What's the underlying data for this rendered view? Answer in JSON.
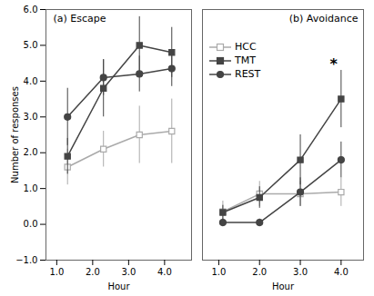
{
  "chart_data": [
    {
      "type": "line",
      "title": "(a) Escape",
      "xlabel": "Hour",
      "ylabel": "Number of responses",
      "x": [
        1.3,
        2.3,
        3.3,
        4.2
      ],
      "series": [
        {
          "name": "HCC",
          "color": "#aaaaaa",
          "marker": "open_square",
          "values": [
            1.6,
            2.1,
            2.5,
            2.6
          ],
          "yerr": [
            0.5,
            0.5,
            0.8,
            0.9
          ]
        },
        {
          "name": "TMT",
          "color": "#444444",
          "marker": "square",
          "values": [
            1.9,
            3.8,
            5.0,
            4.8
          ],
          "yerr": [
            0.5,
            0.8,
            0.8,
            0.7
          ]
        },
        {
          "name": "REST",
          "color": "#444444",
          "marker": "circle",
          "values": [
            3.0,
            4.1,
            4.2,
            4.35
          ],
          "yerr": [
            0.8,
            0.5,
            0.5,
            0.5
          ]
        }
      ],
      "xlim": [
        0.7,
        4.75
      ],
      "xticks": [
        1,
        2,
        3,
        4
      ],
      "ylim": [
        -1,
        6
      ],
      "yticks": [
        -1,
        0,
        1,
        2,
        3,
        4,
        5,
        6
      ]
    },
    {
      "type": "line",
      "title": "(b) Avoidance",
      "xlabel": "Hour",
      "x": [
        1.1,
        2.0,
        3.0,
        4.0
      ],
      "series": [
        {
          "name": "HCC",
          "color": "#aaaaaa",
          "marker": "open_square",
          "values": [
            0.35,
            0.85,
            0.85,
            0.9
          ],
          "yerr": [
            0.3,
            0.35,
            0.35,
            0.4
          ]
        },
        {
          "name": "TMT",
          "color": "#444444",
          "marker": "square",
          "values": [
            0.33,
            0.75,
            1.8,
            3.5
          ],
          "yerr": [
            0.2,
            0.3,
            0.7,
            0.8
          ]
        },
        {
          "name": "REST",
          "color": "#444444",
          "marker": "circle",
          "values": [
            0.05,
            0.05,
            0.9,
            1.8
          ],
          "yerr": [
            0.1,
            0.1,
            0.4,
            0.5
          ]
        }
      ],
      "xlim": [
        0.6,
        4.55
      ],
      "xticks": [
        1,
        2,
        3,
        4
      ],
      "ylim": [
        -1,
        6
      ],
      "yticks": [
        -1,
        0,
        1,
        2,
        3,
        4,
        5,
        6
      ],
      "tick_labels": "x",
      "legend": "upper left",
      "annotations": [
        {
          "text": "*",
          "x": 3.82,
          "y": 4.35
        }
      ]
    }
  ]
}
